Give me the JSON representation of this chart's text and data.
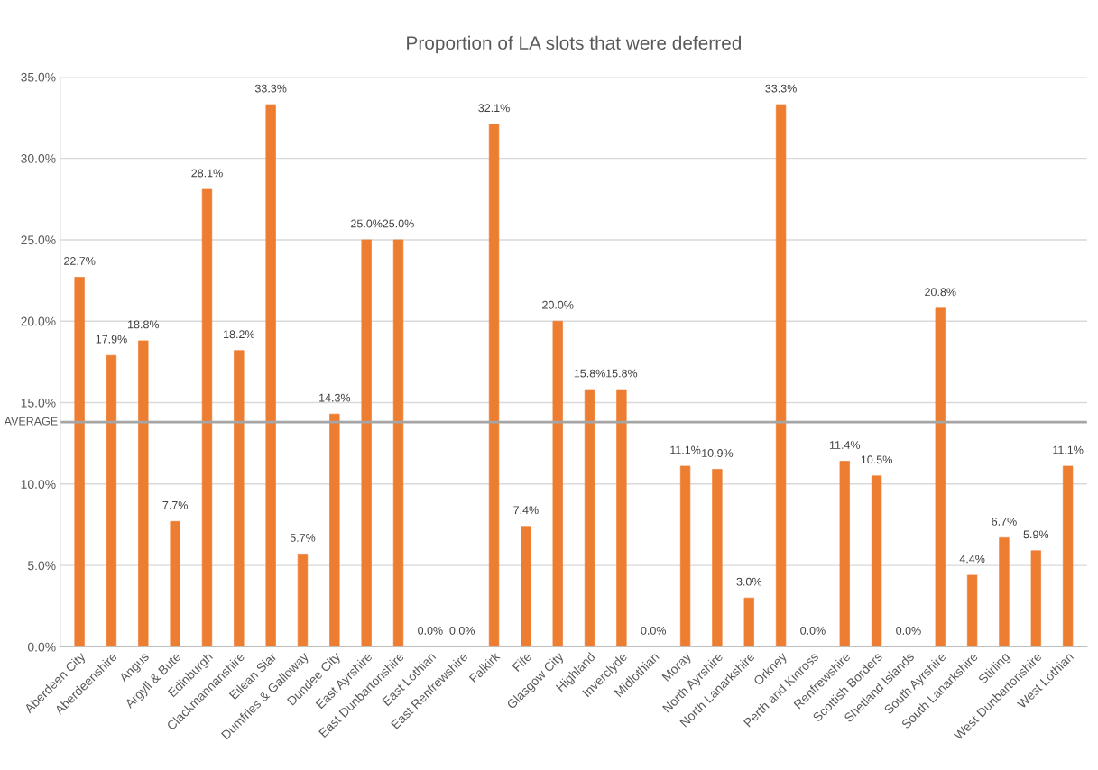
{
  "chart_data": {
    "type": "bar",
    "title": "Proportion of LA slots that were deferred",
    "categories": [
      "Aberdeen City",
      "Aberdeenshire",
      "Angus",
      "Argyll & Bute",
      "Edinburgh",
      "Clackmannanshire",
      "Eilean Siar",
      "Dumfries & Galloway",
      "Dundee City",
      "East Ayrshire",
      "East Dunbartonshire",
      "East Lothian",
      "East Renfrewshire",
      "Falkirk",
      "Fife",
      "Glasgow City",
      "Highland",
      "Inverclyde",
      "Midlothian",
      "Moray",
      "North Ayrshire",
      "North Lanarkshire",
      "Orkney",
      "Perth and Kinross",
      "Renfrewshire",
      "Scottish Borders",
      "Shetland Islands",
      "South Ayrshire",
      "South Lanarkshire",
      "Stirling",
      "West Dunbartonshire",
      "West Lothian"
    ],
    "values": [
      22.7,
      17.9,
      18.8,
      7.7,
      28.1,
      18.2,
      33.3,
      5.7,
      14.3,
      25.0,
      25.0,
      0.0,
      0.0,
      32.1,
      7.4,
      20.0,
      15.8,
      15.8,
      0.0,
      11.1,
      10.9,
      3.0,
      33.3,
      0.0,
      11.4,
      10.5,
      0.0,
      20.8,
      4.4,
      6.7,
      5.9,
      11.1
    ],
    "value_labels": [
      "22.7%",
      "17.9%",
      "18.8%",
      "7.7%",
      "28.1%",
      "18.2%",
      "33.3%",
      "5.7%",
      "14.3%",
      "25.0%",
      "25.0%",
      "0.0%",
      "0.0%",
      "32.1%",
      "7.4%",
      "20.0%",
      "15.8%",
      "15.8%",
      "0.0%",
      "11.1%",
      "10.9%",
      "3.0%",
      "33.3%",
      "0.0%",
      "11.4%",
      "10.5%",
      "0.0%",
      "20.8%",
      "4.4%",
      "6.7%",
      "5.9%",
      "11.1%"
    ],
    "color": "#ed7d31",
    "ylim": [
      0,
      35
    ],
    "yticks": [
      {
        "value": 0,
        "label": "0.0%"
      },
      {
        "value": 5,
        "label": "5.0%"
      },
      {
        "value": 10,
        "label": "10.0%"
      },
      {
        "value": 15,
        "label": "15.0%"
      },
      {
        "value": 20,
        "label": "20.0%"
      },
      {
        "value": 25,
        "label": "25.0%"
      },
      {
        "value": 30,
        "label": "30.0%"
      },
      {
        "value": 35,
        "label": "35.0%"
      }
    ],
    "grid": "y",
    "legend": false,
    "ref_lines": [
      {
        "axis": "y",
        "value": 13.8,
        "label": "AVERAGE",
        "color": "#a5a5a5"
      }
    ]
  }
}
